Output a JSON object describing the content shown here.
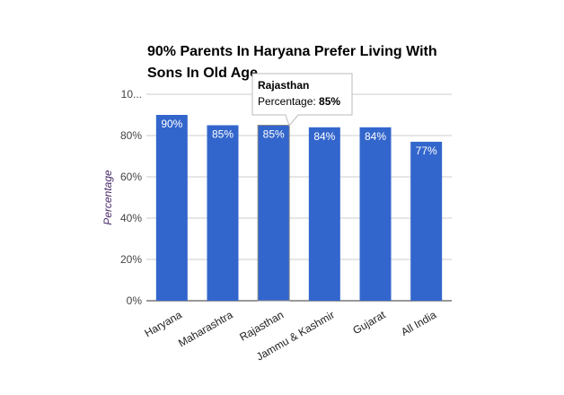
{
  "chart_data": {
    "type": "bar",
    "title": "90% Parents In Haryana Prefer Living With Sons In Old Age",
    "title_lines": [
      "90% Parents In Haryana Prefer Living With",
      "Sons In Old Age"
    ],
    "xlabel": "",
    "ylabel": "Percentage",
    "ylim": [
      0,
      100
    ],
    "yticks": [
      "0%",
      "20%",
      "40%",
      "60%",
      "80%",
      "10..."
    ],
    "grid": true,
    "categories": [
      "Haryana",
      "Maharashtra",
      "Rajasthan",
      "Jammu & Kashmir",
      "Gujarat",
      "All India"
    ],
    "values": [
      90,
      85,
      85,
      84,
      84,
      77
    ],
    "data_labels": [
      "90%",
      "85%",
      "85%",
      "84%",
      "84%",
      "77%"
    ],
    "bar_color": "#3366cc",
    "tooltip": {
      "category": "Rajasthan",
      "label": "Percentage: ",
      "value": "85%"
    }
  }
}
